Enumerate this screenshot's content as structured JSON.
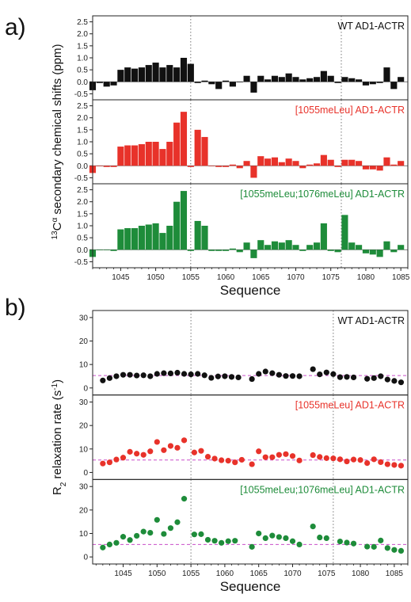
{
  "panel_labels": {
    "a": "a)",
    "b": "b)"
  },
  "colors": {
    "wt": "#111111",
    "red": "#e8322a",
    "green": "#1e8c3a",
    "ref_line": "#c94fc9",
    "vline": "#777777"
  },
  "chart_data": [
    {
      "id": "a",
      "type": "bar",
      "xlabel": "Sequence",
      "ylabel_pre": "13",
      "ylabel_main": "C",
      "ylabel_sup2": "α",
      "ylabel_rest": " secondary chemical shifts (ppm)",
      "xlim": [
        1041,
        1086
      ],
      "ylim": [
        -0.75,
        2.75
      ],
      "yticks": [
        "2.5",
        "2.0",
        "1.5",
        "1.0",
        "0.5",
        "0.0",
        "-0.5"
      ],
      "xticks": [
        "1045",
        "1050",
        "1055",
        "1060",
        "1065",
        "1070",
        "1075",
        "1080",
        "1085"
      ],
      "vlines": [
        1055,
        1076.5
      ],
      "x": [
        1041,
        1042,
        1043,
        1044,
        1045,
        1046,
        1047,
        1048,
        1049,
        1050,
        1051,
        1052,
        1053,
        1054,
        1055,
        1056,
        1057,
        1058,
        1059,
        1060,
        1061,
        1062,
        1063,
        1064,
        1065,
        1066,
        1067,
        1068,
        1069,
        1070,
        1071,
        1072,
        1073,
        1074,
        1075,
        1076,
        1077,
        1078,
        1079,
        1080,
        1081,
        1082,
        1083,
        1084,
        1085
      ],
      "series": [
        {
          "name": "WT AD1-ACTR",
          "color_key": "wt",
          "values": [
            -0.35,
            -0.05,
            -0.2,
            -0.15,
            0.5,
            0.6,
            0.55,
            0.6,
            0.7,
            0.8,
            0.6,
            0.7,
            0.6,
            1.0,
            0.75,
            -0.05,
            0.05,
            -0.1,
            -0.3,
            0.05,
            -0.2,
            0.0,
            0.25,
            -0.45,
            0.25,
            0.1,
            0.25,
            0.2,
            0.35,
            0.2,
            0.1,
            0.15,
            0.2,
            0.45,
            0.25,
            -0.05,
            0.2,
            0.15,
            0.1,
            -0.15,
            -0.1,
            -0.05,
            0.6,
            -0.3,
            0.2
          ]
        },
        {
          "name": "[1055meLeu] AD1-ACTR",
          "color_key": "red",
          "values": [
            -0.3,
            0.0,
            -0.05,
            -0.05,
            0.8,
            0.85,
            0.85,
            0.9,
            1.0,
            1.0,
            0.7,
            1.0,
            1.8,
            2.25,
            -0.05,
            1.5,
            1.2,
            0.0,
            -0.05,
            -0.05,
            0.05,
            -0.1,
            0.2,
            -0.5,
            0.4,
            0.3,
            0.35,
            0.15,
            0.3,
            0.2,
            -0.1,
            0.05,
            0.1,
            0.45,
            0.25,
            -0.05,
            0.25,
            0.25,
            0.2,
            -0.15,
            -0.15,
            -0.2,
            0.35,
            0.05,
            0.2
          ]
        },
        {
          "name": "[1055meLeu;1076meLeu] AD1-ACTR",
          "color_key": "green",
          "values": [
            -0.3,
            0.0,
            0.0,
            -0.05,
            0.85,
            0.9,
            0.9,
            1.0,
            1.05,
            1.1,
            0.7,
            1.0,
            2.0,
            2.45,
            -0.05,
            1.2,
            1.0,
            -0.05,
            -0.05,
            -0.05,
            0.05,
            -0.1,
            0.3,
            -0.35,
            0.4,
            0.2,
            0.35,
            0.3,
            0.4,
            0.2,
            -0.05,
            0.2,
            0.3,
            1.1,
            -0.05,
            -0.1,
            1.45,
            0.3,
            0.2,
            -0.15,
            -0.2,
            -0.3,
            0.35,
            -0.1,
            0.2
          ]
        }
      ]
    },
    {
      "id": "b",
      "type": "scatter",
      "xlabel": "Sequence",
      "ylabel_pre": "R",
      "ylabel_sub": "2",
      "ylabel_rest": " relaxation rate (s",
      "ylabel_sup": "-1",
      "ylabel_end": ")",
      "xlim": [
        1040.5,
        1087
      ],
      "ylim": [
        -3,
        33
      ],
      "yticks": [
        "30",
        "20",
        "10",
        "0"
      ],
      "xticks": [
        "1045",
        "1050",
        "1055",
        "1060",
        "1065",
        "1070",
        "1075",
        "1080",
        "1085"
      ],
      "vlines": [
        1055,
        1076
      ],
      "ref_y": 5.3,
      "series": [
        {
          "name": "WT AD1-ACTR",
          "color_key": "wt",
          "points": [
            [
              1042,
              3.2
            ],
            [
              1043,
              4.2
            ],
            [
              1044,
              5.0
            ],
            [
              1045,
              5.6
            ],
            [
              1046,
              5.6
            ],
            [
              1047,
              5.3
            ],
            [
              1048,
              5.4
            ],
            [
              1049,
              5.0
            ],
            [
              1050,
              6.0
            ],
            [
              1051,
              6.3
            ],
            [
              1052,
              6.2
            ],
            [
              1053,
              6.5
            ],
            [
              1054,
              6.0
            ],
            [
              1055,
              5.8
            ],
            [
              1056,
              6.0
            ],
            [
              1057,
              5.4
            ],
            [
              1058,
              4.3
            ],
            [
              1059,
              4.9
            ],
            [
              1060,
              5.0
            ],
            [
              1061,
              4.7
            ],
            [
              1062,
              4.5
            ],
            [
              1064,
              3.8
            ],
            [
              1065,
              6.0
            ],
            [
              1066,
              7.0
            ],
            [
              1067,
              6.3
            ],
            [
              1068,
              5.6
            ],
            [
              1069,
              5.1
            ],
            [
              1070,
              5.1
            ],
            [
              1071,
              5.0
            ],
            [
              1073,
              8.0
            ],
            [
              1074,
              5.8
            ],
            [
              1075,
              6.6
            ],
            [
              1076,
              5.9
            ],
            [
              1077,
              4.6
            ],
            [
              1078,
              4.7
            ],
            [
              1079,
              4.5
            ],
            [
              1081,
              3.9
            ],
            [
              1082,
              4.2
            ],
            [
              1083,
              5.0
            ],
            [
              1084,
              3.6
            ],
            [
              1085,
              3.0
            ],
            [
              1086,
              2.4
            ]
          ]
        },
        {
          "name": "[1055meLeu] AD1-ACTR",
          "color_key": "red",
          "points": [
            [
              1042,
              3.8
            ],
            [
              1043,
              4.3
            ],
            [
              1044,
              5.5
            ],
            [
              1045,
              6.3
            ],
            [
              1046,
              8.8
            ],
            [
              1047,
              8.0
            ],
            [
              1048,
              7.5
            ],
            [
              1049,
              9.0
            ],
            [
              1050,
              13.0
            ],
            [
              1051,
              9.5
            ],
            [
              1052,
              11.3
            ],
            [
              1053,
              10.5
            ],
            [
              1054,
              13.7
            ],
            [
              1055.5,
              8.5
            ],
            [
              1056.5,
              9.2
            ],
            [
              1057.5,
              6.7
            ],
            [
              1058.5,
              5.9
            ],
            [
              1059.5,
              5.2
            ],
            [
              1060.5,
              5.0
            ],
            [
              1061.5,
              4.3
            ],
            [
              1062.5,
              5.4
            ],
            [
              1064,
              3.5
            ],
            [
              1065,
              9.0
            ],
            [
              1066,
              6.5
            ],
            [
              1067,
              6.5
            ],
            [
              1068,
              7.5
            ],
            [
              1069,
              7.8
            ],
            [
              1070,
              7.0
            ],
            [
              1071,
              5.1
            ],
            [
              1073,
              7.4
            ],
            [
              1074,
              6.6
            ],
            [
              1075,
              6.1
            ],
            [
              1076,
              6.0
            ],
            [
              1077,
              5.6
            ],
            [
              1078,
              4.7
            ],
            [
              1079,
              5.5
            ],
            [
              1080,
              5.3
            ],
            [
              1081,
              4.0
            ],
            [
              1082,
              5.6
            ],
            [
              1083,
              4.4
            ],
            [
              1084,
              3.5
            ],
            [
              1085,
              3.2
            ],
            [
              1086,
              2.9
            ]
          ]
        },
        {
          "name": "[1055meLeu;1076meLeu] AD1-ACTR",
          "color_key": "green",
          "points": [
            [
              1042,
              4.0
            ],
            [
              1043,
              5.3
            ],
            [
              1044,
              6.0
            ],
            [
              1045,
              8.6
            ],
            [
              1046,
              7.2
            ],
            [
              1047,
              9.0
            ],
            [
              1048,
              10.8
            ],
            [
              1049,
              10.3
            ],
            [
              1050,
              15.8
            ],
            [
              1051,
              9.8
            ],
            [
              1052,
              12.3
            ],
            [
              1053,
              14.8
            ],
            [
              1054,
              24.8
            ],
            [
              1055.5,
              9.6
            ],
            [
              1056.5,
              9.7
            ],
            [
              1057.5,
              7.3
            ],
            [
              1058.5,
              6.9
            ],
            [
              1059.5,
              6.0
            ],
            [
              1060.5,
              6.7
            ],
            [
              1061.5,
              6.9
            ],
            [
              1064,
              4.3
            ],
            [
              1065,
              10.0
            ],
            [
              1066,
              8.0
            ],
            [
              1067,
              9.1
            ],
            [
              1068,
              8.5
            ],
            [
              1069,
              8.0
            ],
            [
              1070,
              6.7
            ],
            [
              1071,
              5.3
            ],
            [
              1073,
              13.0
            ],
            [
              1074,
              8.3
            ],
            [
              1075,
              8.0
            ],
            [
              1077,
              6.6
            ],
            [
              1078,
              6.1
            ],
            [
              1079,
              5.7
            ],
            [
              1081,
              4.4
            ],
            [
              1082,
              4.3
            ],
            [
              1083,
              7.0
            ],
            [
              1084,
              3.8
            ],
            [
              1085,
              3.0
            ],
            [
              1086,
              2.6
            ]
          ]
        }
      ]
    }
  ]
}
